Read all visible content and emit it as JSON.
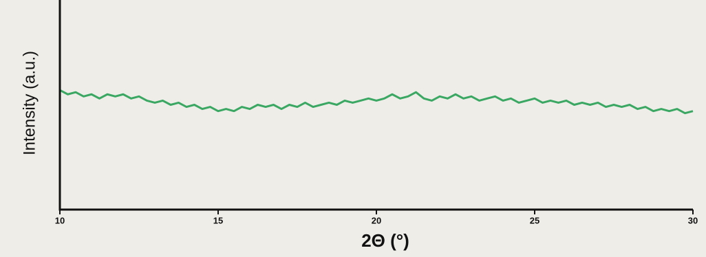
{
  "chart_data": {
    "type": "line",
    "xlabel": "2Θ (°)",
    "ylabel": "Intensity (a.u.)",
    "x": [
      10,
      10.25,
      10.5,
      10.75,
      11,
      11.25,
      11.5,
      11.75,
      12,
      12.25,
      12.5,
      12.75,
      13,
      13.25,
      13.5,
      13.75,
      14,
      14.25,
      14.5,
      14.75,
      15,
      15.25,
      15.5,
      15.75,
      16,
      16.25,
      16.5,
      16.75,
      17,
      17.25,
      17.5,
      17.75,
      18,
      18.25,
      18.5,
      18.75,
      19,
      19.25,
      19.5,
      19.75,
      20,
      20.25,
      20.5,
      20.75,
      21,
      21.25,
      21.5,
      21.75,
      22,
      22.25,
      22.5,
      22.75,
      23,
      23.25,
      23.5,
      23.75,
      24,
      24.25,
      24.5,
      24.75,
      25,
      25.25,
      25.5,
      25.75,
      26,
      26.25,
      26.5,
      26.75,
      27,
      27.25,
      27.5,
      27.75,
      28,
      28.25,
      28.5,
      28.75,
      29,
      29.25,
      29.5,
      29.75,
      30
    ],
    "values": [
      57,
      55,
      56,
      54,
      55,
      53,
      55,
      54,
      55,
      53,
      54,
      52,
      51,
      52,
      50,
      51,
      49,
      50,
      48,
      49,
      47,
      48,
      47,
      49,
      48,
      50,
      49,
      50,
      48,
      50,
      49,
      51,
      49,
      50,
      51,
      50,
      52,
      51,
      52,
      53,
      52,
      53,
      55,
      53,
      54,
      56,
      53,
      52,
      54,
      53,
      55,
      53,
      54,
      52,
      53,
      54,
      52,
      53,
      51,
      52,
      53,
      51,
      52,
      51,
      52,
      50,
      51,
      50,
      51,
      49,
      50,
      49,
      50,
      48,
      49,
      47,
      48,
      47,
      48,
      46,
      47
    ],
    "color": "#3aa862",
    "xlim": [
      10,
      30
    ],
    "xticks": [
      10,
      15,
      20,
      25,
      30
    ],
    "ylim": [
      0,
      100
    ]
  }
}
